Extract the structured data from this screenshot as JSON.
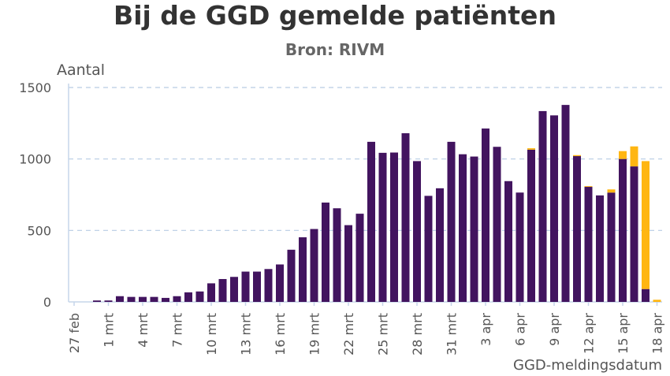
{
  "chart_data": {
    "type": "bar",
    "stacked": true,
    "title": "Bij de GGD gemelde patiënten",
    "subtitle": "Bron: RIVM",
    "ylabel": "Aantal",
    "xlabel": "GGD-meldingsdatum",
    "ylim": [
      0,
      1500
    ],
    "yticks": [
      0,
      500,
      1000,
      1500
    ],
    "grid": true,
    "categories": [
      "27 feb",
      "28 feb",
      "29 feb",
      "1 mrt",
      "2 mrt",
      "3 mrt",
      "4 mrt",
      "5 mrt",
      "6 mrt",
      "7 mrt",
      "8 mrt",
      "9 mrt",
      "10 mrt",
      "11 mrt",
      "12 mrt",
      "13 mrt",
      "14 mrt",
      "15 mrt",
      "16 mrt",
      "17 mrt",
      "18 mrt",
      "19 mrt",
      "20 mrt",
      "21 mrt",
      "22 mrt",
      "23 mrt",
      "24 mrt",
      "25 mrt",
      "26 mrt",
      "27 mrt",
      "28 mrt",
      "29 mrt",
      "30 mrt",
      "31 mrt",
      "1 apr",
      "2 apr",
      "3 apr",
      "4 apr",
      "5 apr",
      "6 apr",
      "7 apr",
      "8 apr",
      "9 apr",
      "10 apr",
      "11 apr",
      "12 apr",
      "13 apr",
      "14 apr",
      "15 apr",
      "16 apr",
      "17 apr",
      "18 apr"
    ],
    "xtick_labels": [
      "27 feb",
      "1 mrt",
      "4 mrt",
      "7 mrt",
      "10 mrt",
      "13 mrt",
      "16 mrt",
      "19 mrt",
      "22 mrt",
      "25 mrt",
      "28 mrt",
      "31 mrt",
      "3 apr",
      "6 apr",
      "9 apr",
      "12 apr",
      "15 apr",
      "18 apr"
    ],
    "series": [
      {
        "color": "#42145f",
        "values": [
          0,
          0,
          10,
          10,
          40,
          35,
          35,
          35,
          28,
          40,
          67,
          73,
          130,
          160,
          175,
          212,
          212,
          230,
          262,
          365,
          452,
          510,
          695,
          655,
          537,
          617,
          1120,
          1043,
          1045,
          1180,
          985,
          742,
          795,
          1120,
          1033,
          1017,
          1213,
          1085,
          845,
          765,
          1065,
          1335,
          1305,
          1378,
          1020,
          805,
          745,
          765,
          1000,
          948,
          90,
          0
        ]
      },
      {
        "color": "#ffb612",
        "values": [
          0,
          0,
          0,
          0,
          0,
          0,
          0,
          0,
          0,
          0,
          0,
          0,
          0,
          0,
          0,
          0,
          0,
          0,
          0,
          0,
          0,
          0,
          0,
          0,
          0,
          0,
          0,
          0,
          0,
          0,
          0,
          0,
          0,
          0,
          0,
          0,
          0,
          0,
          0,
          0,
          10,
          0,
          0,
          0,
          7,
          5,
          0,
          22,
          55,
          140,
          895,
          15
        ]
      }
    ]
  }
}
